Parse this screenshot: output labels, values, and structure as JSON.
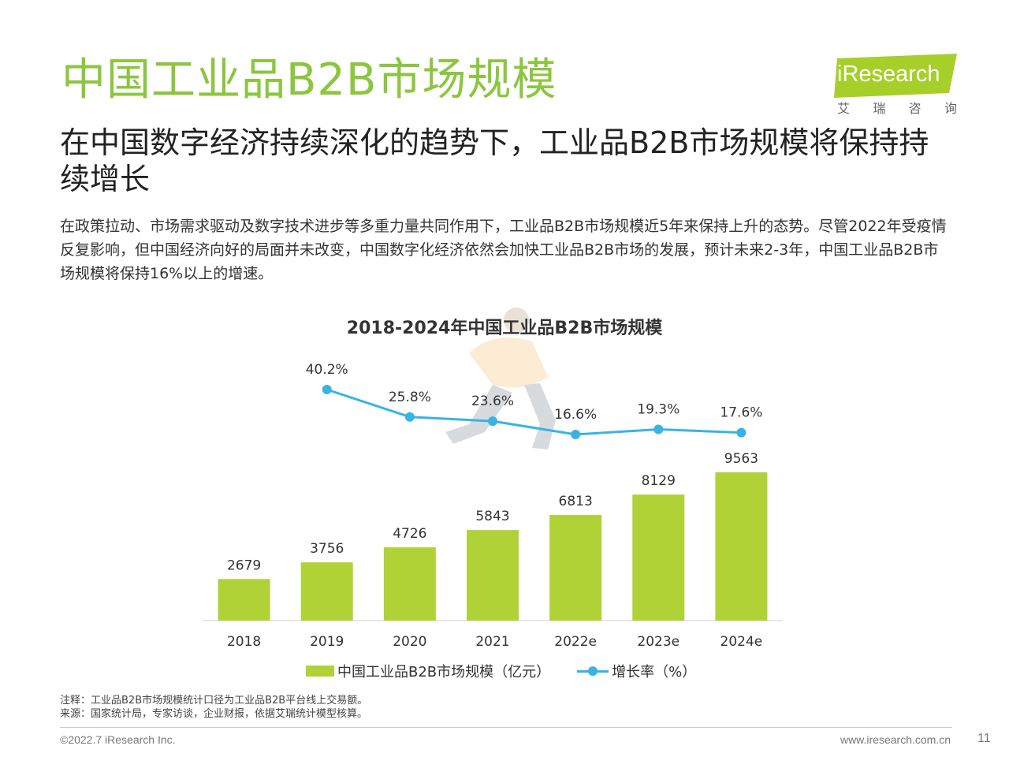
{
  "header": {
    "title": "中国工业品B2B市场规模",
    "subtitle": "在中国数字经济持续深化的趋势下，工业品B2B市场规模将保持持续增长",
    "body": "在政策拉动、市场需求驱动及数字技术进步等多重力量共同作用下，工业品B2B市场规模近5年来保持上升的态势。尽管2022年受疫情反复影响，但中国经济向好的局面并未改变，中国数字化经济依然会加快工业品B2B市场的发展，预计未来2-3年，中国工业品B2B市场规模将保持16%以上的增速。"
  },
  "logo": {
    "text": "iResearch",
    "sub": [
      "艾",
      "瑞",
      "咨",
      "询"
    ]
  },
  "chart_data": {
    "type": "bar",
    "title": "2018-2024年中国工业品B2B市场规模",
    "categories": [
      "2018",
      "2019",
      "2020",
      "2021",
      "2022e",
      "2023e",
      "2024e"
    ],
    "series": [
      {
        "name": "中国工业品B2B市场规模（亿元）",
        "type": "bar",
        "values": [
          2679,
          3756,
          4726,
          5843,
          6813,
          8129,
          9563
        ],
        "labels": [
          "2679",
          "3756",
          "4726",
          "5843",
          "6813",
          "8129",
          "9563"
        ],
        "color": "#b0d236"
      },
      {
        "name": "增长率（%）",
        "type": "line",
        "x": [
          "2019",
          "2020",
          "2021",
          "2022e",
          "2023e",
          "2024e"
        ],
        "values": [
          40.2,
          25.8,
          23.6,
          16.6,
          19.3,
          17.6
        ],
        "labels": [
          "40.2%",
          "25.8%",
          "23.6%",
          "16.6%",
          "19.3%",
          "17.6%"
        ],
        "color": "#39b4e2"
      }
    ],
    "legend": "bottom"
  },
  "notes": {
    "note": "注释：工业品B2B市场规模统计口径为工业品B2B平台线上交易额。",
    "source": "来源：国家统计局，专家访谈，企业财报，依据艾瑞统计模型核算。"
  },
  "footer": {
    "copyright": "©2022.7 iResearch Inc.",
    "website": "www.iresearch.com.cn",
    "page": "11"
  }
}
